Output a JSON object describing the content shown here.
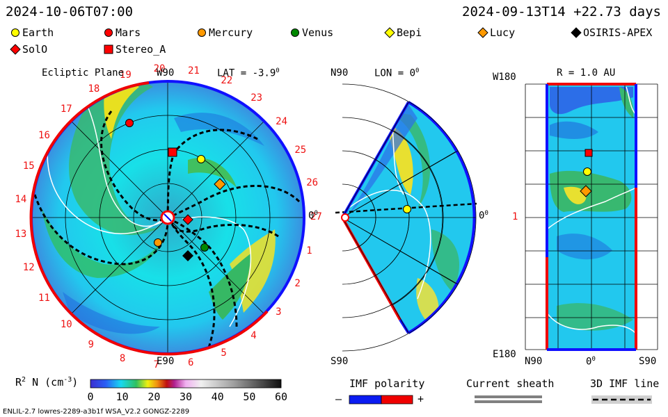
{
  "header": {
    "run_time": "2024-10-06T07:00",
    "model_time": "2024-09-13T14 +22.73 days"
  },
  "legend_bodies": [
    {
      "name": "Earth",
      "shape": "circle",
      "color": "#ffff00"
    },
    {
      "name": "Mars",
      "shape": "circle",
      "color": "#ff0000"
    },
    {
      "name": "Mercury",
      "shape": "circle",
      "color": "#ff9900"
    },
    {
      "name": "Venus",
      "shape": "circle",
      "color": "#008800"
    },
    {
      "name": "Bepi",
      "shape": "diamond",
      "color": "#ffff00"
    },
    {
      "name": "Lucy",
      "shape": "diamond",
      "color": "#ff9900"
    },
    {
      "name": "OSIRIS-APEX",
      "shape": "diamond",
      "color": "#000000"
    },
    {
      "name": "SolO",
      "shape": "diamond",
      "color": "#ff0000"
    },
    {
      "name": "Stereo_A",
      "shape": "square",
      "color": "#ff0000"
    }
  ],
  "panels": {
    "ecliptic": {
      "title": "Ecliptic Plane",
      "top_label": "W90",
      "bottom_label": "E90",
      "right_label": "0",
      "right_sup": "0",
      "lat_label": "LAT = -3.9",
      "lat_sup": "0"
    },
    "meridional": {
      "top_left": "N90",
      "bottom_left": "S90",
      "lon_label": "LON = 0",
      "lon_sup": "0",
      "right_label": "0",
      "right_sup": "0"
    },
    "radial": {
      "r_label": "R = 1.0 AU",
      "top_left": "W180",
      "mid_left": "1",
      "bottom_left": "E180",
      "bottom_n": "N90",
      "bottom_0": "0",
      "bottom_0_sup": "0",
      "bottom_s": "S90"
    }
  },
  "sector_numbers": [
    "1",
    "2",
    "3",
    "4",
    "5",
    "6",
    "7",
    "8",
    "9",
    "10",
    "11",
    "12",
    "13",
    "14",
    "15",
    "16",
    "17",
    "18",
    "19",
    "20",
    "21",
    "22",
    "23",
    "24",
    "25",
    "26",
    "27"
  ],
  "colorbar": {
    "label_main": "R",
    "label_sup": "2",
    "label_rest": " N (cm",
    "label_unit_sup": "-3",
    "label_close": ")",
    "ticks": [
      "0",
      "10",
      "20",
      "30",
      "40",
      "50",
      "60"
    ],
    "min": 0,
    "max": 60
  },
  "bottom_legend": {
    "imf_title": "IMF polarity",
    "imf_minus": "–",
    "imf_plus": "+",
    "sheath_title": "Current sheath",
    "imf3d_title": "3D IMF line",
    "colors": {
      "negative": "#0b1cf2",
      "positive": "#f00000"
    }
  },
  "footer_text": "ENLIL-2.7 lowres-2289-a3b1f WSA_V2.2 GONGZ-2289"
}
